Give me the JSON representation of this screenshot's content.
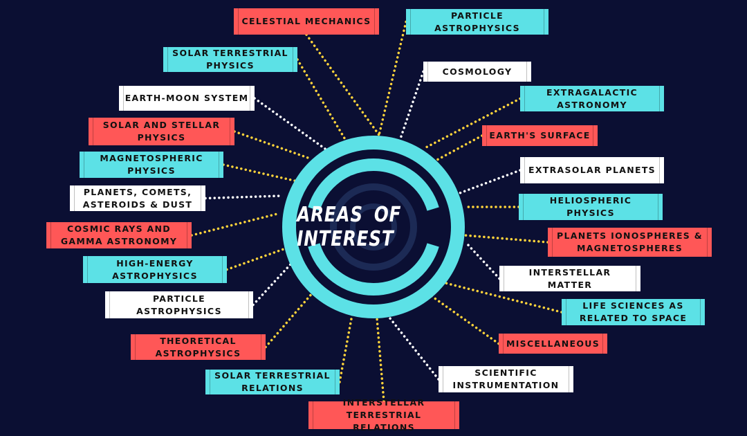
{
  "title": "AREAS OF INTEREST",
  "colors": {
    "background": "#0b0f33",
    "ring": "#5ce1e6",
    "inner_ring": "#1c2a55",
    "red": "#ff5757",
    "cyan": "#5ce1e6",
    "white": "#ffffff",
    "dot_yellow": "#ffd43b",
    "dot_white": "#ffffff"
  },
  "topics": [
    {
      "id": "celestial-mechanics",
      "label": "CELESTIAL MECHANICS",
      "color": "red",
      "line": "yellow"
    },
    {
      "id": "particle-astrophysics-top",
      "label": "PARTICLE\nASTROPHYSICS",
      "color": "cyan",
      "line": "yellow"
    },
    {
      "id": "solar-terrestrial-physics",
      "label": "SOLAR TERRESTRIAL\nPHYSICS",
      "color": "cyan",
      "line": "yellow"
    },
    {
      "id": "cosmology",
      "label": "COSMOLOGY",
      "color": "white",
      "line": "white"
    },
    {
      "id": "earth-moon-system",
      "label": "EARTH-MOON SYSTEM",
      "color": "white",
      "line": "white"
    },
    {
      "id": "extragalactic-astronomy",
      "label": "EXTRAGALACTIC\nASTRONOMY",
      "color": "cyan",
      "line": "yellow"
    },
    {
      "id": "solar-and-stellar-physics",
      "label": "SOLAR AND STELLAR\nPHYSICS",
      "color": "red",
      "line": "yellow"
    },
    {
      "id": "earths-surface",
      "label": "EARTH'S SURFACE",
      "color": "red",
      "line": "yellow"
    },
    {
      "id": "magnetospheric-physics",
      "label": "MAGNETOSPHERIC\nPHYSICS",
      "color": "cyan",
      "line": "yellow"
    },
    {
      "id": "extrasolar-planets",
      "label": "EXTRASOLAR PLANETS",
      "color": "white",
      "line": "white"
    },
    {
      "id": "planets-comets-asteroids-dust",
      "label": "PLANETS, COMETS,\nASTEROIDS & DUST",
      "color": "white",
      "line": "white"
    },
    {
      "id": "heliospheric-physics",
      "label": "HELIOSPHERIC PHYSICS",
      "color": "cyan",
      "line": "yellow"
    },
    {
      "id": "cosmic-rays-gamma-astronomy",
      "label": "COSMIC RAYS AND\nGAMMA ASTRONOMY",
      "color": "red",
      "line": "yellow"
    },
    {
      "id": "planets-ionospheres-magnetospheres",
      "label": "PLANETS IONOSPHERES &\nMAGNETOSPHERES",
      "color": "red",
      "line": "yellow"
    },
    {
      "id": "high-energy-astrophysics",
      "label": "HIGH-ENERGY\nASTROPHYSICS",
      "color": "cyan",
      "line": "yellow"
    },
    {
      "id": "interstellar-matter",
      "label": "INTERSTELLAR MATTER",
      "color": "white",
      "line": "white"
    },
    {
      "id": "particle-astrophysics-bottom",
      "label": "PARTICLE\nASTROPHYSICS",
      "color": "white",
      "line": "white"
    },
    {
      "id": "life-sciences-space",
      "label": "LIFE SCIENCES AS\nRELATED TO SPACE",
      "color": "cyan",
      "line": "yellow"
    },
    {
      "id": "theoretical-astrophysics",
      "label": "THEORETICAL\nASTROPHYSICS",
      "color": "red",
      "line": "yellow"
    },
    {
      "id": "miscellaneous",
      "label": "MISCELLANEOUS",
      "color": "red",
      "line": "yellow"
    },
    {
      "id": "solar-terrestrial-relations",
      "label": "SOLAR TERRESTRIAL\nRELATIONS",
      "color": "cyan",
      "line": "yellow"
    },
    {
      "id": "scientific-instrumentation",
      "label": "SCIENTIFIC\nINSTRUMENTATION",
      "color": "white",
      "line": "white"
    },
    {
      "id": "interstellar-terrestrial-relations",
      "label": "INTERSTELLAR\nTERRESTRIAL RELATIONS",
      "color": "red",
      "line": "yellow"
    }
  ]
}
